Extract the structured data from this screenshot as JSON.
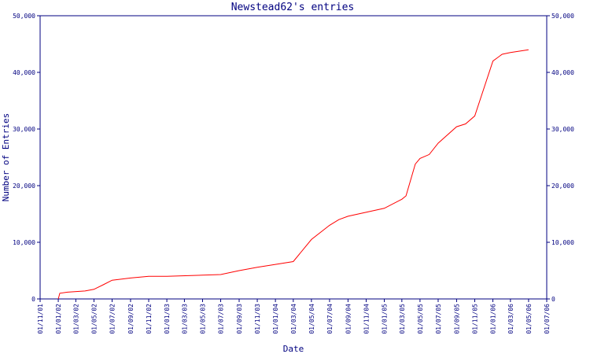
{
  "chart_data": {
    "type": "line",
    "title": "Newstead62's entries",
    "xlabel": "Date",
    "ylabel": "Number of Entries",
    "ylim": [
      0,
      50000
    ],
    "y_ticks": [
      0,
      10000,
      20000,
      30000,
      40000,
      50000
    ],
    "y_tick_labels": [
      "0",
      "10,000",
      "20,000",
      "30,000",
      "40,000",
      "50,000"
    ],
    "y_axis_sides": "left and right",
    "grid": false,
    "x_tick_labels": [
      "01/11/01",
      "01/01/02",
      "01/03/02",
      "01/05/02",
      "01/07/02",
      "01/09/02",
      "01/11/02",
      "01/01/03",
      "01/03/03",
      "01/05/03",
      "01/07/03",
      "01/09/03",
      "01/11/03",
      "01/01/04",
      "01/03/04",
      "01/05/04",
      "01/07/04",
      "01/09/04",
      "01/11/04",
      "01/01/05",
      "01/03/05",
      "01/05/05",
      "01/07/05",
      "01/09/05",
      "01/11/05",
      "01/01/06",
      "01/03/06",
      "01/05/06",
      "01/07/06"
    ],
    "series": [
      {
        "color": "#ff0000",
        "points": [
          [
            "01/01/02",
            0
          ],
          [
            "06/01/02",
            1000
          ],
          [
            "01/02/02",
            1200
          ],
          [
            "01/04/02",
            1400
          ],
          [
            "01/05/02",
            1700
          ],
          [
            "01/06/02",
            2500
          ],
          [
            "01/07/02",
            3300
          ],
          [
            "01/09/02",
            3700
          ],
          [
            "01/11/02",
            4000
          ],
          [
            "01/01/03",
            4000
          ],
          [
            "01/05/03",
            4200
          ],
          [
            "01/07/03",
            4300
          ],
          [
            "01/09/03",
            5000
          ],
          [
            "01/11/03",
            5600
          ],
          [
            "01/01/04",
            6100
          ],
          [
            "01/03/04",
            6600
          ],
          [
            "01/05/04",
            10500
          ],
          [
            "01/07/04",
            13000
          ],
          [
            "01/08/04",
            14000
          ],
          [
            "01/09/04",
            14600
          ],
          [
            "01/01/05",
            16000
          ],
          [
            "01/03/05",
            17600
          ],
          [
            "15/03/05",
            18200
          ],
          [
            "15/04/05",
            23800
          ],
          [
            "01/05/05",
            24800
          ],
          [
            "01/06/05",
            25500
          ],
          [
            "01/07/05",
            27500
          ],
          [
            "01/09/05",
            30400
          ],
          [
            "01/10/05",
            30900
          ],
          [
            "01/11/05",
            32300
          ],
          [
            "01/01/06",
            42000
          ],
          [
            "01/02/06",
            43200
          ],
          [
            "01/03/06",
            43500
          ],
          [
            "01/05/06",
            44000
          ]
        ]
      }
    ]
  }
}
